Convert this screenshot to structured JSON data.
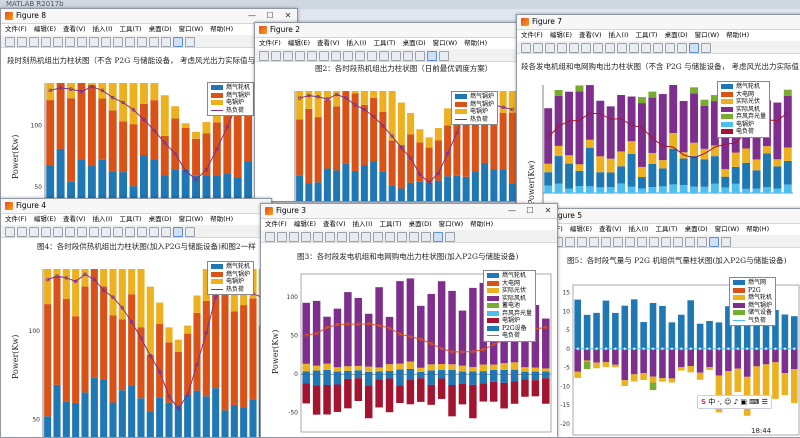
{
  "desktop": {
    "caption": "MATLAB R2017b"
  },
  "menu": [
    "文件(F)",
    "编辑(E)",
    "查看(V)",
    "插入(I)",
    "工具(T)",
    "桌面(D)",
    "窗口(W)",
    "帮助(H)"
  ],
  "colors": {
    "blue": "#1f77b4",
    "orange": "#d95319",
    "yellow": "#edb120",
    "purple": "#7e2f8e",
    "green": "#77ac30",
    "cyan": "#4dbeee",
    "maroon": "#a2142f",
    "line": "#7e2f8e"
  },
  "figures": {
    "f8": {
      "title": "Figure 8",
      "plot_title": "段时刻热机组出力柱状图（不含 P2G 与储能设备， 考虑风光出力实际值与预测值偏差）(",
      "ylabel": "Power(Kw)",
      "legend": [
        "燃气轮机",
        "燃气锅炉",
        "电锅炉",
        "热负荷"
      ],
      "ticks": [
        "100",
        "50"
      ]
    },
    "f2": {
      "title": "Figure 2",
      "plot_title": "图2：各时段热机组出力柱状图（日前最优调度方案）",
      "legend": [
        "燃气锅炉",
        "燃气锅炉",
        "电锅炉",
        "热负荷"
      ]
    },
    "f7": {
      "title": "Figure 7",
      "plot_title": "段各发电机组和电网购电出力柱状图（不含 P2G 与储能设备， 考虑风光出力实际值",
      "ylabel": "Power(Kw)",
      "legend": [
        "燃气轮机",
        "大电网",
        "实际光伏",
        "实际风机",
        "弃风弃光量",
        "电锅炉",
        "电负荷"
      ]
    },
    "f4": {
      "title": "Figure 4",
      "plot_title": "图4：各时段供热机组出力柱状图(加入P2G与储能设备)和图2一样",
      "ylabel": "Power(Kw)",
      "legend": [
        "燃气轮机",
        "燃气锅炉",
        "电锅炉",
        "热负荷"
      ],
      "ticks": [
        "100",
        "50"
      ]
    },
    "f3": {
      "title": "Figure 3",
      "plot_title": "图3：各时段发电机组和电网购电出力柱状图(加入P2G与储能设备)",
      "ylabel": "Power(Kw)",
      "legend": [
        "燃气轮机",
        "大电网",
        "实际光伏",
        "实际风机",
        "蓄电池",
        "弃风弃光量",
        "电锅炉",
        "P2G设备",
        "电负荷"
      ],
      "ticks": [
        "100",
        "50",
        "0",
        "-50"
      ]
    },
    "f5": {
      "title": "Figure 5",
      "plot_title": "图5：各时段气量与 P2G 机组供气量柱状图(加入P2G与储能设备)",
      "legend": [
        "燃气网",
        "P2G",
        "燃气轮机",
        "燃气锅炉",
        "储气设备",
        "气负荷"
      ],
      "ticks": [
        "15",
        "10",
        "5",
        "0",
        "-5",
        "-10",
        "-15",
        "-20"
      ]
    }
  },
  "tray": {
    "ime": "中",
    "time": "18:44"
  }
}
